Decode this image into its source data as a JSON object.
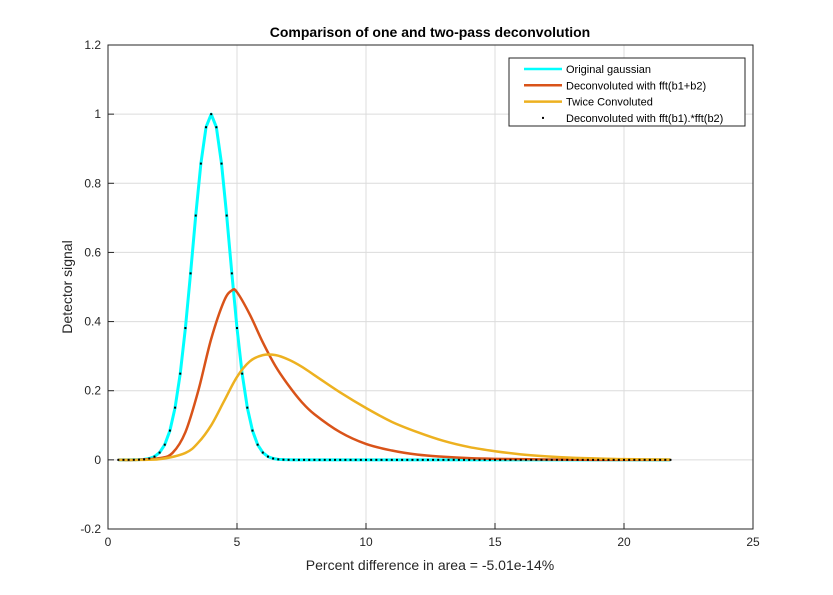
{
  "chart_data": {
    "type": "line",
    "title": "Comparison of one and two-pass deconvolution",
    "xlabel": "Percent difference in area = -5.01e-14%",
    "ylabel": "Detector signal",
    "xlim": [
      0,
      25
    ],
    "ylim": [
      -0.2,
      1.2
    ],
    "xticks": [
      "0",
      "5",
      "10",
      "15",
      "20",
      "25"
    ],
    "xtick_values": [
      0,
      5,
      10,
      15,
      20,
      25
    ],
    "yticks": [
      "-0.2",
      "0",
      "0.2",
      "0.4",
      "0.6",
      "0.8",
      "1",
      "1.2"
    ],
    "ytick_values": [
      -0.2,
      0,
      0.2,
      0.4,
      0.6,
      0.8,
      1,
      1.2
    ],
    "grid": true,
    "legend_position": "top-right",
    "series": [
      {
        "name": "Original gaussian",
        "color": "#00FFFF",
        "style": "line",
        "gaussian": {
          "mu": 4,
          "sigma": 0.72,
          "amp": 1,
          "x_start": 0.4,
          "x_end": 21.8,
          "step": 0.2
        }
      },
      {
        "name": "Deconvoluted with fft(b1+b2)",
        "color": "#D95319",
        "style": "line",
        "x": [
          0.4,
          1,
          2,
          2.5,
          3,
          3.5,
          4,
          4.5,
          4.8,
          5,
          5.5,
          6,
          6.5,
          7,
          7.5,
          8,
          9,
          10,
          11,
          12,
          13,
          14,
          15,
          17,
          19,
          21.8
        ],
        "y": [
          0,
          0,
          0.005,
          0.02,
          0.08,
          0.2,
          0.35,
          0.46,
          0.49,
          0.485,
          0.42,
          0.34,
          0.27,
          0.215,
          0.168,
          0.132,
          0.08,
          0.046,
          0.027,
          0.015,
          0.009,
          0.005,
          0.003,
          0.001,
          0,
          0
        ]
      },
      {
        "name": "Twice Convoluted",
        "color": "#EDB120",
        "style": "line",
        "x": [
          0.4,
          1,
          2,
          3,
          3.5,
          4,
          4.5,
          5,
          5.5,
          6,
          6.5,
          7,
          7.5,
          8,
          9,
          10,
          11,
          12,
          13,
          14,
          15,
          16,
          17,
          18,
          19,
          20,
          21.8
        ],
        "y": [
          0,
          0,
          0.002,
          0.02,
          0.05,
          0.1,
          0.17,
          0.24,
          0.285,
          0.303,
          0.303,
          0.29,
          0.27,
          0.245,
          0.195,
          0.15,
          0.11,
          0.08,
          0.055,
          0.037,
          0.025,
          0.016,
          0.01,
          0.006,
          0.004,
          0.002,
          0.001
        ]
      },
      {
        "name": "Deconvoluted with fft(b1).*fft(b2)",
        "color": "#000000",
        "style": "dots",
        "gaussian": {
          "mu": 4,
          "sigma": 0.72,
          "amp": 1,
          "x_start": 0.4,
          "x_end": 21.8,
          "step": 0.2
        }
      }
    ]
  }
}
